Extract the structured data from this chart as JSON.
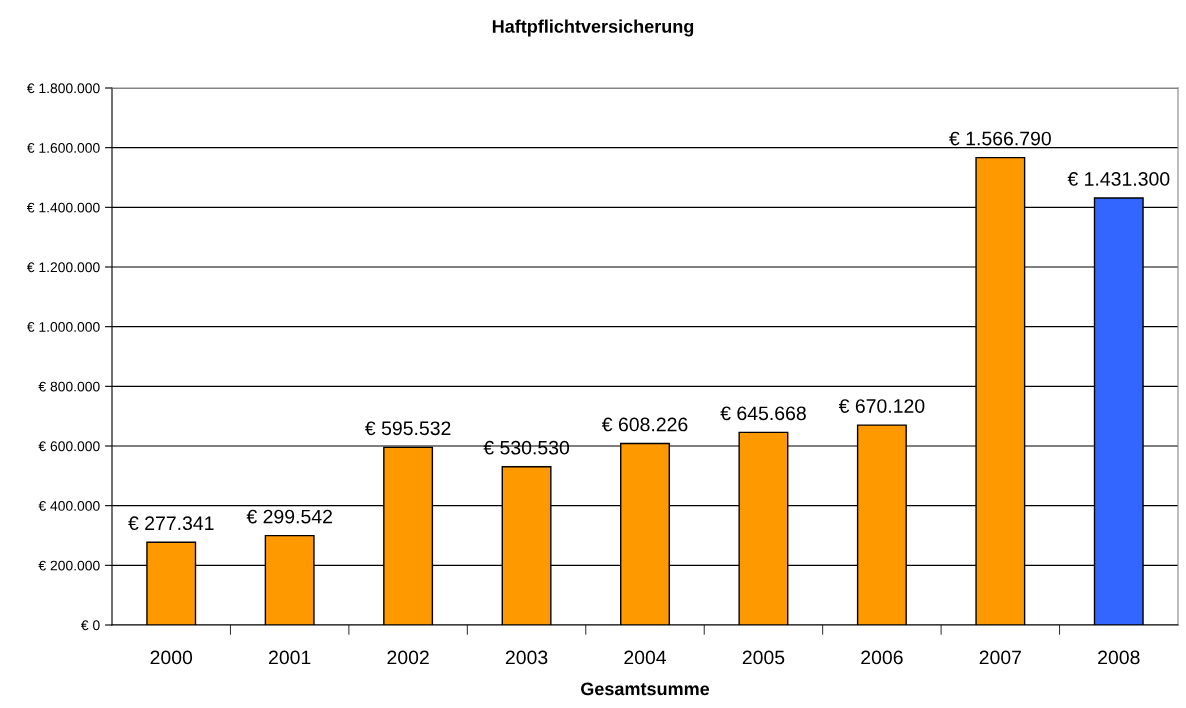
{
  "chart_data": {
    "type": "bar",
    "title": "Haftpflichtversicherung",
    "xlabel": "Gesamtsumme",
    "categories": [
      "2000",
      "2001",
      "2002",
      "2003",
      "2004",
      "2005",
      "2006",
      "2007",
      "2008"
    ],
    "values": [
      277341,
      299542,
      595532,
      530530,
      608226,
      645668,
      670120,
      1566790,
      1431300
    ],
    "colors": [
      "#ff9900",
      "#ff9900",
      "#ff9900",
      "#ff9900",
      "#ff9900",
      "#ff9900",
      "#ff9900",
      "#ff9900",
      "#3366ff"
    ],
    "value_labels": [
      "€ 277.341",
      "€ 299.542",
      "€ 595.532",
      "€ 530.530",
      "€ 608.226",
      "€ 645.668",
      "€ 670.120",
      "€ 1.566.790",
      "€ 1.431.300"
    ],
    "ylim": [
      0,
      1800000
    ],
    "yticks": [
      {
        "value": 0,
        "label": "€ 0"
      },
      {
        "value": 200000,
        "label": "€ 200.000"
      },
      {
        "value": 400000,
        "label": "€ 400.000"
      },
      {
        "value": 600000,
        "label": "€ 600.000"
      },
      {
        "value": 800000,
        "label": "€ 800.000"
      },
      {
        "value": 1000000,
        "label": "€ 1.000.000"
      },
      {
        "value": 1200000,
        "label": "€ 1.200.000"
      },
      {
        "value": 1400000,
        "label": "€ 1.400.000"
      },
      {
        "value": 1600000,
        "label": "€ 1.600.000"
      },
      {
        "value": 1800000,
        "label": "€ 1.800.000"
      }
    ],
    "grid": "y"
  }
}
